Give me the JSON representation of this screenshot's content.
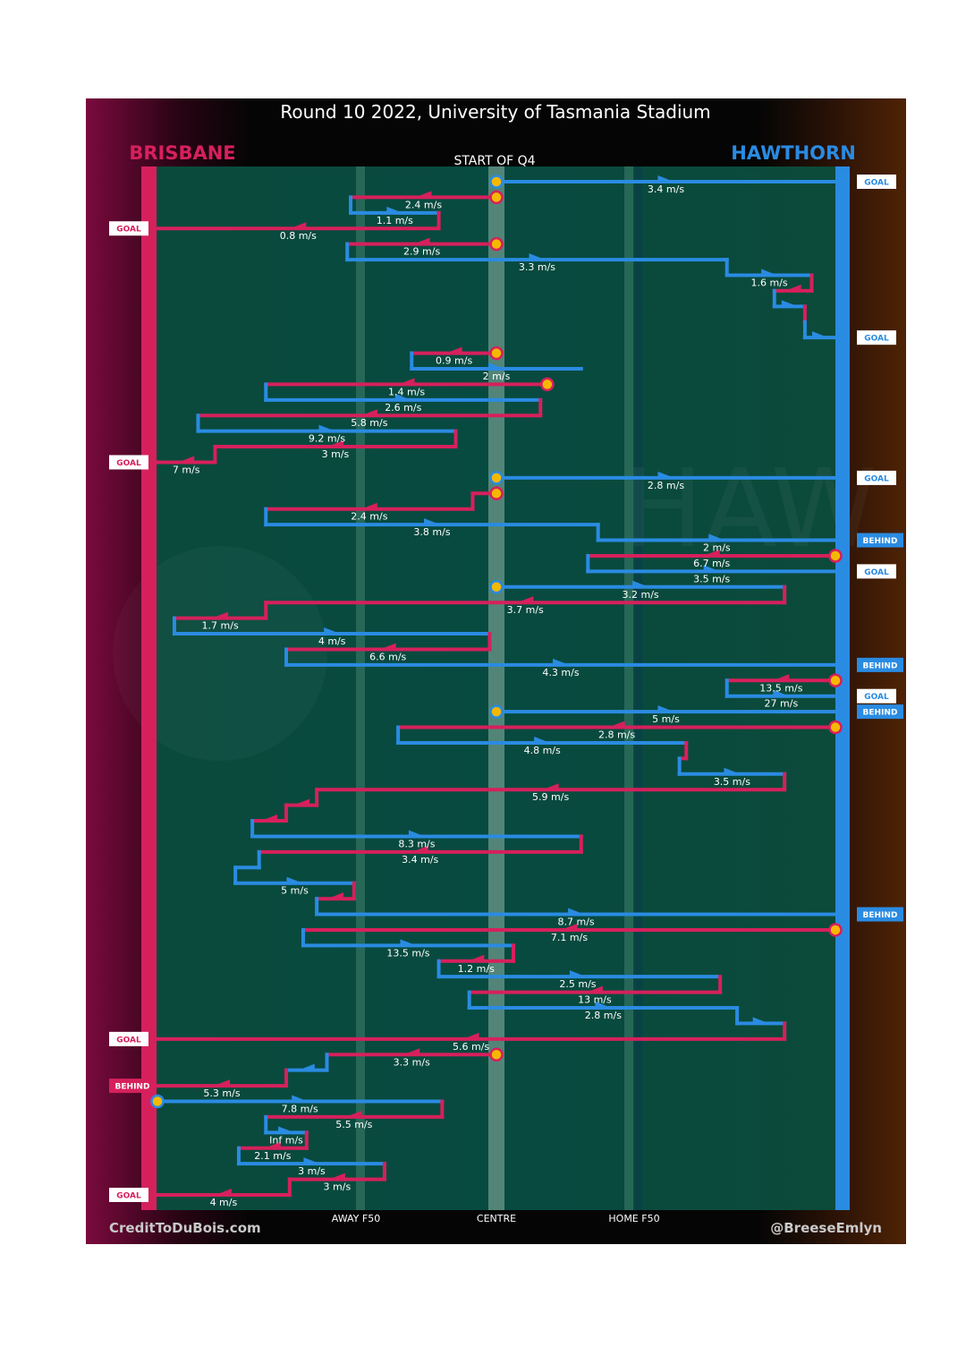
{
  "title": "Round 10 2022, University of Tasmania Stadium",
  "teams": {
    "left": {
      "name": "BRISBANE",
      "color": "#d6205c"
    },
    "right": {
      "name": "HAWTHORN",
      "color": "#2a8be2"
    }
  },
  "subtitle": "START OF Q4",
  "footer": {
    "left": "CreditToDuBois.com",
    "right": "@BreeseEmlyn"
  },
  "colors": {
    "field": "#084a3e",
    "bri": "#d6205c",
    "haw": "#2a8be2",
    "marker": "#f5b800"
  },
  "chart_data": {
    "type": "line",
    "x_ticks": [
      "AWAY F50",
      "CENTRE",
      "HOME F50"
    ],
    "chains": [
      {
        "team": "haw",
        "from": 0,
        "to": 1,
        "speed": "3.4 m/s",
        "result": "GOAL"
      },
      {
        "team": "bri",
        "from": 0,
        "to": -0.43,
        "speed": "2.4 m/s"
      },
      {
        "team": "haw",
        "from": -0.43,
        "to": -0.17,
        "speed": "1.1 m/s"
      },
      {
        "team": "bri",
        "from": -0.17,
        "to": -1,
        "speed": "0.8 m/s",
        "result": "GOAL"
      },
      {
        "team": "bri",
        "from": 0,
        "to": -0.44,
        "speed": "2.9 m/s"
      },
      {
        "team": "haw",
        "from": -0.44,
        "to": 0.68,
        "speed": "3.3 m/s"
      },
      {
        "team": "haw",
        "from": 0.68,
        "to": 0.93,
        "speed": "1.6 m/s"
      },
      {
        "team": "bri",
        "from": 0.93,
        "to": 0.82
      },
      {
        "team": "haw",
        "from": 0.82,
        "to": 0.91
      },
      {
        "team": "bri",
        "from": 0.91,
        "to": 0.91
      },
      {
        "team": "haw",
        "from": 0.91,
        "to": 1,
        "result": "GOAL"
      },
      {
        "team": "bri",
        "from": 0,
        "to": -0.25,
        "speed": "0.9 m/s"
      },
      {
        "team": "haw",
        "from": -0.25,
        "to": 0.25,
        "speed": "2 m/s"
      },
      {
        "team": "bri",
        "from": 0.15,
        "to": -0.68,
        "speed": "1.4 m/s"
      },
      {
        "team": "haw",
        "from": -0.68,
        "to": 0.13,
        "speed": "2.6 m/s"
      },
      {
        "team": "bri",
        "from": 0.13,
        "to": -0.88,
        "speed": "5.8 m/s"
      },
      {
        "team": "haw",
        "from": -0.88,
        "to": -0.12,
        "speed": "9.2 m/s"
      },
      {
        "team": "bri",
        "from": -0.12,
        "to": -0.83,
        "speed": "3 m/s"
      },
      {
        "team": "bri",
        "from": -0.83,
        "to": -1,
        "speed": "7 m/s",
        "result": "GOAL"
      },
      {
        "team": "haw",
        "from": 0,
        "to": 1,
        "speed": "2.8 m/s",
        "result": "GOAL"
      },
      {
        "team": "bri",
        "from": 0,
        "to": -0.07
      },
      {
        "team": "bri",
        "from": -0.07,
        "to": -0.68,
        "speed": "2.4 m/s"
      },
      {
        "team": "haw",
        "from": -0.68,
        "to": 0.3,
        "speed": "3.8 m/s"
      },
      {
        "team": "haw",
        "from": 0.3,
        "to": 1,
        "speed": "2 m/s",
        "result": "BEHIND"
      },
      {
        "team": "bri",
        "from": 1,
        "to": 0.27,
        "speed": "6.7 m/s"
      },
      {
        "team": "haw",
        "from": 0.27,
        "to": 1,
        "speed": "3.5 m/s",
        "result": "GOAL"
      },
      {
        "team": "haw",
        "from": 0,
        "to": 0.85,
        "speed": "3.2 m/s"
      },
      {
        "team": "bri",
        "from": 0.85,
        "to": -0.68,
        "speed": "3.7 m/s"
      },
      {
        "team": "bri",
        "from": -0.68,
        "to": -0.95,
        "speed": "1.7 m/s"
      },
      {
        "team": "haw",
        "from": -0.95,
        "to": -0.02,
        "speed": "4 m/s"
      },
      {
        "team": "bri",
        "from": -0.02,
        "to": -0.62,
        "speed": "6.6 m/s"
      },
      {
        "team": "haw",
        "from": -0.62,
        "to": 1,
        "speed": "4.3 m/s",
        "result": "BEHIND"
      },
      {
        "team": "bri",
        "from": 1,
        "to": 0.68,
        "speed": "13.5 m/s"
      },
      {
        "team": "haw",
        "from": 0.68,
        "to": 1,
        "speed": "27 m/s",
        "result": "GOAL"
      },
      {
        "team": "haw",
        "from": 0,
        "to": 1,
        "speed": "5 m/s",
        "result": "BEHIND"
      },
      {
        "team": "bri",
        "from": 1,
        "to": -0.29,
        "speed": "2.8 m/s"
      },
      {
        "team": "haw",
        "from": -0.29,
        "to": 0.56,
        "speed": "4.8 m/s"
      },
      {
        "team": "bri",
        "from": 0.56,
        "to": 0.54
      },
      {
        "team": "haw",
        "from": 0.54,
        "to": 0.85,
        "speed": "3.5 m/s"
      },
      {
        "team": "bri",
        "from": 0.85,
        "to": -0.53,
        "speed": "5.9 m/s"
      },
      {
        "team": "bri",
        "from": -0.53,
        "to": -0.62
      },
      {
        "team": "bri",
        "from": -0.62,
        "to": -0.72
      },
      {
        "team": "haw",
        "from": -0.72,
        "to": 0.25,
        "speed": "8.3 m/s"
      },
      {
        "team": "bri",
        "from": 0.25,
        "to": -0.7,
        "speed": "3.4 m/s"
      },
      {
        "team": "haw",
        "from": -0.7,
        "to": -0.77
      },
      {
        "team": "haw",
        "from": -0.77,
        "to": -0.42,
        "speed": "5 m/s"
      },
      {
        "team": "bri",
        "from": -0.42,
        "to": -0.53
      },
      {
        "team": "haw",
        "from": -0.53,
        "to": 1,
        "speed": "8.7 m/s",
        "result": "BEHIND"
      },
      {
        "team": "bri",
        "from": 1,
        "to": -0.57,
        "speed": "7.1 m/s"
      },
      {
        "team": "haw",
        "from": -0.57,
        "to": 0.05,
        "speed": "13.5 m/s"
      },
      {
        "team": "bri",
        "from": 0.05,
        "to": -0.17,
        "speed": "1.2 m/s"
      },
      {
        "team": "haw",
        "from": -0.17,
        "to": 0.65,
        "speed": "2.5 m/s"
      },
      {
        "team": "bri",
        "from": 0.66,
        "to": -0.08,
        "speed": "13 m/s"
      },
      {
        "team": "haw",
        "from": -0.08,
        "to": 0.71,
        "speed": "2.8 m/s"
      },
      {
        "team": "haw",
        "from": 0.71,
        "to": 0.85
      },
      {
        "team": "bri",
        "from": 0.85,
        "to": -1,
        "speed": "5.6 m/s",
        "result": "GOAL"
      },
      {
        "team": "bri",
        "from": 0,
        "to": -0.5,
        "speed": "3.3 m/s"
      },
      {
        "team": "haw",
        "from": -0.5,
        "to": -0.62
      },
      {
        "team": "bri",
        "from": -0.62,
        "to": -1,
        "speed": "5.3 m/s",
        "result": "BEHIND"
      },
      {
        "team": "haw",
        "from": -1,
        "to": -0.16,
        "speed": "7.8 m/s"
      },
      {
        "team": "bri",
        "from": -0.16,
        "to": -0.68,
        "speed": "5.5 m/s"
      },
      {
        "team": "haw",
        "from": -0.68,
        "to": -0.56,
        "speed": "Inf m/s"
      },
      {
        "team": "bri",
        "from": -0.56,
        "to": -0.76,
        "speed": "2.1 m/s"
      },
      {
        "team": "haw",
        "from": -0.76,
        "to": -0.33,
        "speed": "3 m/s"
      },
      {
        "team": "bri",
        "from": -0.33,
        "to": -0.61,
        "speed": "3 m/s"
      },
      {
        "team": "bri",
        "from": -0.61,
        "to": -1,
        "speed": "4 m/s",
        "result": "GOAL"
      }
    ]
  }
}
